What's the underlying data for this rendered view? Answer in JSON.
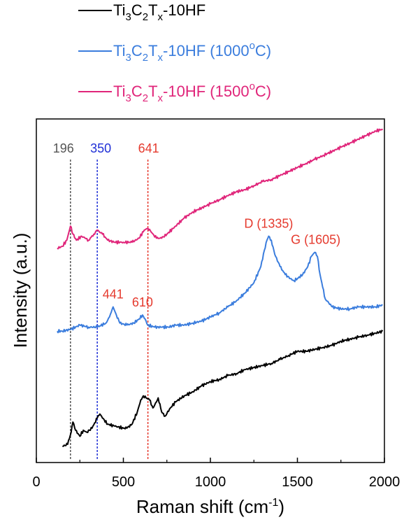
{
  "chart_data": {
    "type": "line",
    "xlabel": "Raman shift (cm",
    "xlabel_sup": "-1",
    "xlabel_end": ")",
    "ylabel": "Intensity (a.u.)",
    "xlim": [
      0,
      2000
    ],
    "xticks": [
      "0",
      "500",
      "1000",
      "1500",
      "2000"
    ],
    "y_ticks_shown": false,
    "grid": false,
    "legend_position": "top-left (above plot)",
    "series": [
      {
        "name": "Ti3C2Tx-10HF",
        "color": "#000000",
        "legend": [
          {
            "t": "Ti",
            "s": ""
          },
          {
            "t": "3",
            "s": "sub"
          },
          {
            "t": "C",
            "s": ""
          },
          {
            "t": "2",
            "s": "sub"
          },
          {
            "t": "T",
            "s": ""
          },
          {
            "t": "x",
            "s": "sub"
          },
          {
            "t": "-10HF",
            "s": ""
          }
        ],
        "points": [
          [
            150,
            0.03
          ],
          [
            180,
            0.04
          ],
          [
            200,
            0.1
          ],
          [
            210,
            0.15
          ],
          [
            225,
            0.11
          ],
          [
            250,
            0.08
          ],
          [
            270,
            0.11
          ],
          [
            290,
            0.1
          ],
          [
            320,
            0.12
          ],
          [
            350,
            0.17
          ],
          [
            365,
            0.19
          ],
          [
            380,
            0.17
          ],
          [
            410,
            0.14
          ],
          [
            450,
            0.13
          ],
          [
            500,
            0.12
          ],
          [
            520,
            0.12
          ],
          [
            550,
            0.14
          ],
          [
            580,
            0.2
          ],
          [
            600,
            0.26
          ],
          [
            615,
            0.28
          ],
          [
            630,
            0.27
          ],
          [
            650,
            0.26
          ],
          [
            670,
            0.22
          ],
          [
            690,
            0.25
          ],
          [
            700,
            0.27
          ],
          [
            710,
            0.24
          ],
          [
            720,
            0.2
          ],
          [
            740,
            0.18
          ],
          [
            770,
            0.22
          ],
          [
            800,
            0.25
          ],
          [
            850,
            0.28
          ],
          [
            900,
            0.3
          ],
          [
            950,
            0.33
          ],
          [
            1000,
            0.35
          ],
          [
            1050,
            0.36
          ],
          [
            1100,
            0.38
          ],
          [
            1150,
            0.39
          ],
          [
            1200,
            0.41
          ],
          [
            1250,
            0.42
          ],
          [
            1300,
            0.43
          ],
          [
            1350,
            0.44
          ],
          [
            1400,
            0.46
          ],
          [
            1450,
            0.48
          ],
          [
            1500,
            0.5
          ],
          [
            1550,
            0.5
          ],
          [
            1600,
            0.51
          ],
          [
            1650,
            0.52
          ],
          [
            1700,
            0.53
          ],
          [
            1750,
            0.55
          ],
          [
            1800,
            0.56
          ],
          [
            1850,
            0.57
          ],
          [
            1900,
            0.58
          ],
          [
            1950,
            0.59
          ],
          [
            1990,
            0.6
          ]
        ]
      },
      {
        "name": "Ti3C2Tx-10HF (1000°C)",
        "color": "#3b7ddd",
        "legend": [
          {
            "t": "Ti",
            "s": ""
          },
          {
            "t": "3",
            "s": "sub"
          },
          {
            "t": "C",
            "s": ""
          },
          {
            "t": "2",
            "s": "sub"
          },
          {
            "t": "T",
            "s": ""
          },
          {
            "t": "x",
            "s": "sub"
          },
          {
            "t": "-10HF (1000",
            "s": ""
          },
          {
            "t": "o",
            "s": "sup"
          },
          {
            "t": "C)",
            "s": ""
          }
        ],
        "points": [
          [
            120,
            0.6
          ],
          [
            150,
            0.6
          ],
          [
            200,
            0.61
          ],
          [
            250,
            0.63
          ],
          [
            300,
            0.62
          ],
          [
            350,
            0.62
          ],
          [
            400,
            0.64
          ],
          [
            420,
            0.67
          ],
          [
            441,
            0.72
          ],
          [
            460,
            0.68
          ],
          [
            480,
            0.64
          ],
          [
            520,
            0.63
          ],
          [
            560,
            0.64
          ],
          [
            590,
            0.66
          ],
          [
            610,
            0.68
          ],
          [
            625,
            0.66
          ],
          [
            640,
            0.63
          ],
          [
            680,
            0.62
          ],
          [
            720,
            0.62
          ],
          [
            760,
            0.62
          ],
          [
            800,
            0.63
          ],
          [
            850,
            0.63
          ],
          [
            900,
            0.64
          ],
          [
            950,
            0.65
          ],
          [
            1000,
            0.67
          ],
          [
            1050,
            0.69
          ],
          [
            1100,
            0.72
          ],
          [
            1150,
            0.75
          ],
          [
            1200,
            0.79
          ],
          [
            1250,
            0.84
          ],
          [
            1290,
            0.92
          ],
          [
            1310,
            1.0
          ],
          [
            1325,
            1.05
          ],
          [
            1335,
            1.07
          ],
          [
            1350,
            1.05
          ],
          [
            1370,
            0.98
          ],
          [
            1400,
            0.92
          ],
          [
            1430,
            0.88
          ],
          [
            1460,
            0.86
          ],
          [
            1480,
            0.85
          ],
          [
            1500,
            0.86
          ],
          [
            1530,
            0.88
          ],
          [
            1560,
            0.92
          ],
          [
            1580,
            0.97
          ],
          [
            1600,
            0.99
          ],
          [
            1615,
            0.97
          ],
          [
            1630,
            0.88
          ],
          [
            1660,
            0.76
          ],
          [
            1700,
            0.72
          ],
          [
            1750,
            0.71
          ],
          [
            1800,
            0.71
          ],
          [
            1850,
            0.72
          ],
          [
            1900,
            0.72
          ],
          [
            1950,
            0.72
          ],
          [
            1990,
            0.73
          ]
        ]
      },
      {
        "name": "Ti3C2Tx-10HF (1500°C)",
        "color": "#e0257a",
        "legend": [
          {
            "t": "Ti",
            "s": ""
          },
          {
            "t": "3",
            "s": "sub"
          },
          {
            "t": "C",
            "s": ""
          },
          {
            "t": "2",
            "s": "sub"
          },
          {
            "t": "T",
            "s": ""
          },
          {
            "t": "x",
            "s": "sub"
          },
          {
            "t": "-10HF (1500",
            "s": ""
          },
          {
            "t": "o",
            "s": "sup"
          },
          {
            "t": "C)",
            "s": ""
          }
        ],
        "points": [
          [
            120,
            1.01
          ],
          [
            150,
            1.02
          ],
          [
            175,
            1.05
          ],
          [
            196,
            1.12
          ],
          [
            210,
            1.08
          ],
          [
            230,
            1.05
          ],
          [
            260,
            1.07
          ],
          [
            280,
            1.06
          ],
          [
            300,
            1.05
          ],
          [
            330,
            1.08
          ],
          [
            350,
            1.1
          ],
          [
            380,
            1.08
          ],
          [
            410,
            1.05
          ],
          [
            450,
            1.04
          ],
          [
            500,
            1.04
          ],
          [
            550,
            1.04
          ],
          [
            590,
            1.06
          ],
          [
            620,
            1.1
          ],
          [
            641,
            1.11
          ],
          [
            660,
            1.09
          ],
          [
            690,
            1.06
          ],
          [
            720,
            1.06
          ],
          [
            750,
            1.08
          ],
          [
            800,
            1.12
          ],
          [
            850,
            1.16
          ],
          [
            900,
            1.19
          ],
          [
            950,
            1.21
          ],
          [
            1000,
            1.23
          ],
          [
            1050,
            1.25
          ],
          [
            1100,
            1.27
          ],
          [
            1150,
            1.29
          ],
          [
            1200,
            1.3
          ],
          [
            1250,
            1.32
          ],
          [
            1300,
            1.34
          ],
          [
            1350,
            1.35
          ],
          [
            1400,
            1.37
          ],
          [
            1450,
            1.39
          ],
          [
            1500,
            1.41
          ],
          [
            1550,
            1.43
          ],
          [
            1600,
            1.45
          ],
          [
            1650,
            1.47
          ],
          [
            1700,
            1.49
          ],
          [
            1750,
            1.51
          ],
          [
            1800,
            1.53
          ],
          [
            1850,
            1.55
          ],
          [
            1900,
            1.57
          ],
          [
            1950,
            1.59
          ],
          [
            1990,
            1.6
          ]
        ]
      }
    ],
    "reference_lines": [
      {
        "x": 196,
        "label": "196",
        "color": "#555555"
      },
      {
        "x": 350,
        "label": "350",
        "color": "#1f2fd6"
      },
      {
        "x": 641,
        "label": "641",
        "color": "#e53a2e"
      }
    ],
    "annotations": [
      {
        "x": 441,
        "y": 0.72,
        "label": "441",
        "color": "#e53a2e"
      },
      {
        "x": 610,
        "y": 0.68,
        "label": "610",
        "color": "#e53a2e"
      },
      {
        "x": 1335,
        "y": 1.07,
        "label": "D (1335)",
        "color": "#e53a2e"
      },
      {
        "x": 1605,
        "y": 0.99,
        "label": "G (1605)",
        "color": "#e53a2e"
      }
    ]
  }
}
